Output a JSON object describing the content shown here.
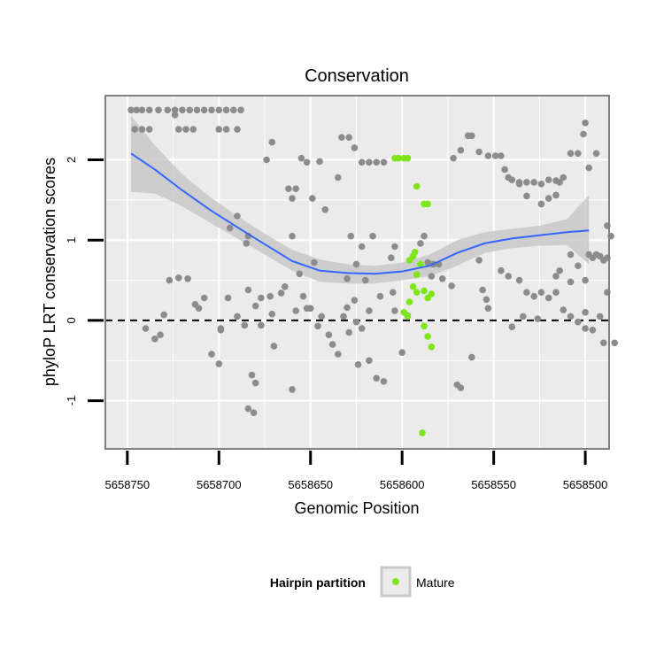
{
  "chart_data": {
    "type": "scatter",
    "title": "Conservation",
    "xlabel": "Genomic Position",
    "ylabel": "phyloP LRT conservation scores",
    "xlim": [
      5658762,
      5658487
    ],
    "x_reversed": true,
    "ylim": [
      -1.6,
      2.8
    ],
    "x_ticks": [
      5658750,
      5658700,
      5658650,
      5658600,
      5658550,
      5658500
    ],
    "x_tick_labels": [
      "5658750",
      "5658700",
      "5658650",
      "5658600",
      "5658550",
      "5658500"
    ],
    "y_ticks": [
      -1,
      0,
      1,
      2
    ],
    "y_tick_labels": [
      "-1",
      "0",
      "1",
      "2"
    ],
    "grid": true,
    "reference_line": {
      "y": 0,
      "style": "dashed"
    },
    "legend": {
      "title": "Hairpin partition",
      "position": "bottom",
      "entries": [
        {
          "label": "Mature",
          "color": "#7fe51a"
        }
      ]
    },
    "colors": {
      "background": "#ebebeb",
      "grid": "#ffffff",
      "other_points": "#8c8c8c",
      "mature_points": "#7fe51a",
      "smooth_line": "#3366ff",
      "ribbon": "#c8c8c8"
    },
    "series": [
      {
        "name": "",
        "color": "#8c8c8c",
        "points": [
          [
            5658748,
            2.62
          ],
          [
            5658745,
            2.62
          ],
          [
            5658742,
            2.62
          ],
          [
            5658738,
            2.62
          ],
          [
            5658746,
            2.38
          ],
          [
            5658742,
            2.38
          ],
          [
            5658738,
            2.38
          ],
          [
            5658733,
            2.62
          ],
          [
            5658728,
            2.62
          ],
          [
            5658724,
            2.62
          ],
          [
            5658720,
            2.62
          ],
          [
            5658716,
            2.62
          ],
          [
            5658712,
            2.62
          ],
          [
            5658708,
            2.62
          ],
          [
            5658704,
            2.62
          ],
          [
            5658700,
            2.62
          ],
          [
            5658696,
            2.62
          ],
          [
            5658692,
            2.62
          ],
          [
            5658688,
            2.62
          ],
          [
            5658724,
            2.56
          ],
          [
            5658722,
            2.38
          ],
          [
            5658718,
            2.38
          ],
          [
            5658714,
            2.38
          ],
          [
            5658700,
            2.38
          ],
          [
            5658696,
            2.38
          ],
          [
            5658690,
            2.38
          ],
          [
            5658674,
            2.0
          ],
          [
            5658671,
            2.22
          ],
          [
            5658655,
            2.02
          ],
          [
            5658652,
            1.97
          ],
          [
            5658645,
            1.98
          ],
          [
            5658662,
            1.64
          ],
          [
            5658660,
            1.52
          ],
          [
            5658658,
            1.64
          ],
          [
            5658649,
            1.52
          ],
          [
            5658642,
            1.38
          ],
          [
            5658635,
            1.78
          ],
          [
            5658633,
            2.28
          ],
          [
            5658629,
            2.28
          ],
          [
            5658626,
            2.15
          ],
          [
            5658622,
            1.97
          ],
          [
            5658618,
            1.97
          ],
          [
            5658614,
            1.97
          ],
          [
            5658610,
            1.97
          ],
          [
            5658690,
            1.3
          ],
          [
            5658694,
            1.15
          ],
          [
            5658685,
            0.96
          ],
          [
            5658684,
            1.05
          ],
          [
            5658660,
            1.05
          ],
          [
            5658628,
            1.05
          ],
          [
            5658622,
            0.92
          ],
          [
            5658616,
            1.05
          ],
          [
            5658606,
            0.78
          ],
          [
            5658604,
            0.92
          ],
          [
            5658625,
            0.7
          ],
          [
            5658630,
            0.52
          ],
          [
            5658620,
            0.5
          ],
          [
            5658648,
            0.72
          ],
          [
            5658656,
            0.58
          ],
          [
            5658672,
            0.3
          ],
          [
            5658666,
            0.34
          ],
          [
            5658677,
            0.28
          ],
          [
            5658680,
            0.18
          ],
          [
            5658671,
            0.08
          ],
          [
            5658664,
            0.42
          ],
          [
            5658658,
            0.12
          ],
          [
            5658654,
            0.3
          ],
          [
            5658650,
            0.15
          ],
          [
            5658644,
            0.05
          ],
          [
            5658640,
            -0.18
          ],
          [
            5658638,
            -0.3
          ],
          [
            5658635,
            -0.42
          ],
          [
            5658632,
            0.05
          ],
          [
            5658629,
            -0.15
          ],
          [
            5658624,
            -0.55
          ],
          [
            5658618,
            -0.5
          ],
          [
            5658614,
            -0.72
          ],
          [
            5658610,
            -0.76
          ],
          [
            5658600,
            -0.4
          ],
          [
            5658605,
            0.35
          ],
          [
            5658612,
            0.3
          ],
          [
            5658618,
            0.12
          ],
          [
            5658626,
            0.25
          ],
          [
            5658630,
            0.16
          ],
          [
            5658740,
            -0.1
          ],
          [
            5658735,
            -0.23
          ],
          [
            5658732,
            -0.18
          ],
          [
            5658730,
            0.07
          ],
          [
            5658727,
            0.5
          ],
          [
            5658722,
            0.53
          ],
          [
            5658717,
            0.52
          ],
          [
            5658713,
            0.2
          ],
          [
            5658711,
            0.15
          ],
          [
            5658708,
            0.28
          ],
          [
            5658699,
            -0.1
          ],
          [
            5658695,
            0.28
          ],
          [
            5658690,
            0.05
          ],
          [
            5658684,
            0.38
          ],
          [
            5658670,
            -0.32
          ],
          [
            5658660,
            -0.86
          ],
          [
            5658682,
            -0.68
          ],
          [
            5658680,
            -0.78
          ],
          [
            5658684,
            -1.1
          ],
          [
            5658681,
            -1.15
          ],
          [
            5658699,
            -0.12
          ],
          [
            5658704,
            -0.42
          ],
          [
            5658700,
            -0.54
          ],
          [
            5658686,
            -0.06
          ],
          [
            5658677,
            -0.06
          ],
          [
            5658646,
            -0.07
          ],
          [
            5658652,
            0.15
          ],
          [
            5658625,
            -0.02
          ],
          [
            5658622,
            -0.1
          ],
          [
            5658597,
            0.06
          ],
          [
            5658604,
            0.12
          ],
          [
            5658588,
            1.05
          ],
          [
            5658590,
            0.96
          ],
          [
            5658586,
            0.72
          ],
          [
            5658584,
            0.55
          ],
          [
            5658583,
            0.7
          ],
          [
            5658580,
            0.7
          ],
          [
            5658578,
            0.52
          ],
          [
            5658573,
            0.43
          ],
          [
            5658570,
            -0.8
          ],
          [
            5658568,
            -0.84
          ],
          [
            5658562,
            -0.46
          ],
          [
            5658556,
            0.38
          ],
          [
            5658554,
            0.26
          ],
          [
            5658553,
            0.15
          ],
          [
            5658558,
            0.75
          ],
          [
            5658572,
            2.02
          ],
          [
            5658568,
            2.12
          ],
          [
            5658564,
            2.3
          ],
          [
            5658562,
            2.3
          ],
          [
            5658558,
            2.1
          ],
          [
            5658553,
            2.05
          ],
          [
            5658549,
            2.05
          ],
          [
            5658546,
            2.05
          ],
          [
            5658544,
            1.88
          ],
          [
            5658540,
            1.75
          ],
          [
            5658536,
            1.72
          ],
          [
            5658532,
            1.72
          ],
          [
            5658528,
            1.72
          ],
          [
            5658524,
            1.7
          ],
          [
            5658520,
            1.75
          ],
          [
            5658516,
            1.74
          ],
          [
            5658514,
            1.72
          ],
          [
            5658542,
            1.78
          ],
          [
            5658536,
            1.7
          ],
          [
            5658532,
            1.55
          ],
          [
            5658524,
            1.45
          ],
          [
            5658520,
            1.52
          ],
          [
            5658516,
            1.56
          ],
          [
            5658512,
            1.78
          ],
          [
            5658508,
            2.08
          ],
          [
            5658504,
            2.08
          ],
          [
            5658498,
            1.9
          ],
          [
            5658494,
            2.08
          ],
          [
            5658500,
            2.46
          ],
          [
            5658501,
            2.32
          ],
          [
            5658546,
            0.62
          ],
          [
            5658542,
            0.55
          ],
          [
            5658536,
            0.5
          ],
          [
            5658532,
            0.35
          ],
          [
            5658524,
            0.35
          ],
          [
            5658516,
            0.55
          ],
          [
            5658514,
            0.62
          ],
          [
            5658508,
            0.48
          ],
          [
            5658504,
            0.68
          ],
          [
            5658500,
            0.5
          ],
          [
            5658496,
            0.78
          ],
          [
            5658492,
            0.8
          ],
          [
            5658490,
            0.75
          ],
          [
            5658488,
            0.78
          ],
          [
            5658486,
            1.05
          ],
          [
            5658488,
            1.18
          ],
          [
            5658494,
            0.82
          ],
          [
            5658498,
            0.82
          ],
          [
            5658508,
            0.82
          ],
          [
            5658528,
            0.3
          ],
          [
            5658520,
            0.28
          ],
          [
            5658516,
            0.35
          ],
          [
            5658500,
            0.1
          ],
          [
            5658492,
            0.05
          ],
          [
            5658504,
            -0.02
          ],
          [
            5658500,
            -0.1
          ],
          [
            5658496,
            -0.12
          ],
          [
            5658490,
            -0.28
          ],
          [
            5658484,
            -0.28
          ],
          [
            5658488,
            0.35
          ],
          [
            5658534,
            0.05
          ],
          [
            5658526,
            0.02
          ],
          [
            5658540,
            -0.08
          ],
          [
            5658512,
            0.13
          ],
          [
            5658508,
            0.05
          ]
        ]
      },
      {
        "name": "Mature",
        "color": "#7fe51a",
        "points": [
          [
            5658604,
            2.02
          ],
          [
            5658602,
            2.02
          ],
          [
            5658599,
            2.02
          ],
          [
            5658597,
            2.02
          ],
          [
            5658592,
            1.67
          ],
          [
            5658588,
            1.45
          ],
          [
            5658586,
            1.45
          ],
          [
            5658596,
            0.75
          ],
          [
            5658594,
            0.8
          ],
          [
            5658593,
            0.85
          ],
          [
            5658590,
            0.7
          ],
          [
            5658592,
            0.57
          ],
          [
            5658594,
            0.42
          ],
          [
            5658596,
            0.23
          ],
          [
            5658599,
            0.1
          ],
          [
            5658597,
            0.05
          ],
          [
            5658592,
            0.35
          ],
          [
            5658588,
            0.37
          ],
          [
            5658586,
            0.28
          ],
          [
            5658584,
            0.33
          ],
          [
            5658588,
            -0.07
          ],
          [
            5658586,
            -0.2
          ],
          [
            5658584,
            -0.33
          ],
          [
            5658589,
            -1.4
          ]
        ]
      }
    ],
    "smooth_line": {
      "x": [
        5658748,
        5658735,
        5658720,
        5658705,
        5658690,
        5658675,
        5658660,
        5658645,
        5658630,
        5658615,
        5658600,
        5658585,
        5658570,
        5658555,
        5658540,
        5658525,
        5658510,
        5658498
      ],
      "y": [
        2.08,
        1.88,
        1.62,
        1.38,
        1.16,
        0.95,
        0.74,
        0.62,
        0.59,
        0.58,
        0.61,
        0.68,
        0.84,
        0.96,
        1.02,
        1.06,
        1.1,
        1.12
      ],
      "ci_upper": [
        2.55,
        2.18,
        1.82,
        1.54,
        1.3,
        1.08,
        0.88,
        0.76,
        0.7,
        0.68,
        0.72,
        0.82,
        1.0,
        1.1,
        1.14,
        1.18,
        1.26,
        1.56
      ],
      "ci_lower": [
        1.6,
        1.58,
        1.42,
        1.22,
        1.02,
        0.82,
        0.62,
        0.48,
        0.46,
        0.46,
        0.5,
        0.55,
        0.68,
        0.84,
        0.9,
        0.93,
        0.94,
        0.7
      ]
    }
  }
}
